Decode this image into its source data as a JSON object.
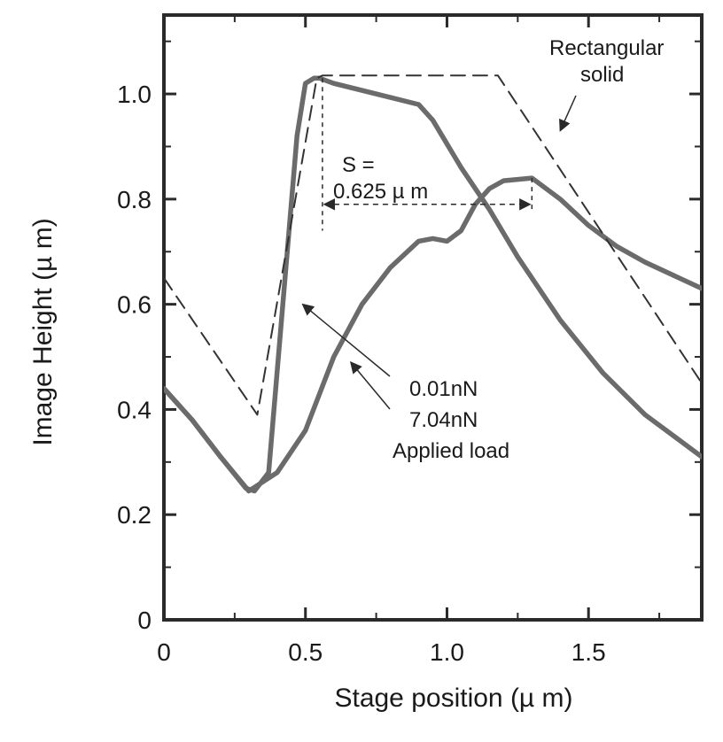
{
  "chart_data": {
    "type": "line",
    "title": "",
    "xlabel": "Stage position  (µ m)",
    "ylabel": "Image Height (µ m)",
    "xlim": [
      0,
      1.9
    ],
    "ylim": [
      0,
      1.15
    ],
    "x_ticks": [
      0,
      0.5,
      1.0,
      1.5
    ],
    "x_tick_labels": [
      "0",
      "0.5",
      "1.0",
      "1.5"
    ],
    "y_ticks": [
      0,
      0.2,
      0.4,
      0.6,
      0.8,
      1.0
    ],
    "y_tick_labels": [
      "0",
      "0.2",
      "0.4",
      "0.6",
      "0.8",
      "1.0"
    ],
    "series": [
      {
        "name": "0.01nN",
        "style": "solid",
        "x": [
          0,
          0.1,
          0.2,
          0.29,
          0.32,
          0.37,
          0.42,
          0.47,
          0.5,
          0.53,
          0.55,
          0.6,
          0.75,
          0.9,
          0.95,
          1.05,
          1.15,
          1.25,
          1.4,
          1.55,
          1.7,
          1.9
        ],
        "y": [
          0.44,
          0.38,
          0.31,
          0.25,
          0.245,
          0.28,
          0.6,
          0.92,
          1.02,
          1.03,
          1.03,
          1.02,
          1.0,
          0.98,
          0.95,
          0.86,
          0.78,
          0.69,
          0.57,
          0.47,
          0.39,
          0.31
        ]
      },
      {
        "name": "7.04nN",
        "style": "solid",
        "x": [
          0,
          0.1,
          0.2,
          0.3,
          0.4,
          0.5,
          0.6,
          0.7,
          0.8,
          0.9,
          0.95,
          1.0,
          1.05,
          1.1,
          1.15,
          1.2,
          1.3,
          1.4,
          1.5,
          1.6,
          1.7,
          1.9
        ],
        "y": [
          0.44,
          0.38,
          0.31,
          0.245,
          0.28,
          0.36,
          0.5,
          0.6,
          0.67,
          0.72,
          0.725,
          0.72,
          0.74,
          0.79,
          0.82,
          0.835,
          0.84,
          0.8,
          0.75,
          0.71,
          0.68,
          0.63
        ]
      },
      {
        "name": "Rectangular solid",
        "style": "dashed",
        "x": [
          0,
          0.33,
          0.54,
          0.56,
          1.18,
          1.9
        ],
        "y": [
          0.65,
          0.39,
          1.03,
          1.035,
          1.035,
          0.45
        ]
      }
    ],
    "annotations": {
      "rect_label_line1": "Rectangular",
      "rect_label_line2": "solid",
      "s_label_line1": "S =",
      "s_label_line2": "0.625 µ m",
      "s_value": 0.625,
      "s_from_x": 0.56,
      "s_to_x": 1.3,
      "s_at_y": 0.79,
      "load_1": "0.01nN",
      "load_2": "7.04nN",
      "load_caption": "Applied load"
    }
  }
}
